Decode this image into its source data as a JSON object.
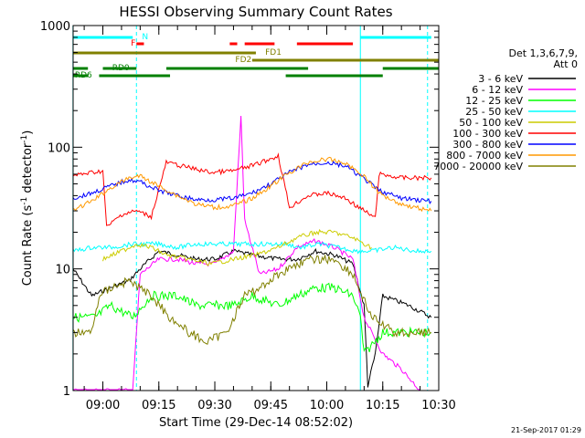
{
  "chart_data": {
    "type": "line",
    "title": "HESSI Observing Summary Count Rates",
    "xlabel": "Start Time (29-Dec-14 08:52:02)",
    "ylabel_main": "Count Rate (s",
    "ylabel_exp1": "-1",
    "ylabel_mid": " detector",
    "ylabel_exp2": "-1",
    "ylabel_end": ")",
    "y_scale": "log",
    "ylim": [
      1,
      1000
    ],
    "xlim": [
      "08:52:02",
      "10:30:00"
    ],
    "y_ticks": [
      {
        "value": 1,
        "label": "1"
      },
      {
        "value": 10,
        "label": "10"
      },
      {
        "value": 100,
        "label": "100"
      },
      {
        "value": 1000,
        "label": "1000"
      }
    ],
    "x_ticks": [
      {
        "time": "09:00",
        "label": "09:00"
      },
      {
        "time": "09:15",
        "label": "09:15"
      },
      {
        "time": "09:30",
        "label": "09:30"
      },
      {
        "time": "09:45",
        "label": "09:45"
      },
      {
        "time": "10:00",
        "label": "10:00"
      },
      {
        "time": "10:15",
        "label": "10:15"
      },
      {
        "time": "10:30",
        "label": "10:30"
      }
    ],
    "legend": {
      "header1": "Det 1,3,6,7,9,",
      "header2": "Att 0",
      "placement": "right"
    },
    "series": [
      {
        "name": "3 - 6 keV",
        "color": "#000000",
        "points": [
          [
            "08:52",
            10
          ],
          [
            "08:57",
            6
          ],
          [
            "09:02",
            7
          ],
          [
            "09:07",
            8
          ],
          [
            "09:10",
            10
          ],
          [
            "09:15",
            14
          ],
          [
            "09:20",
            13
          ],
          [
            "09:25",
            12
          ],
          [
            "09:30",
            12
          ],
          [
            "09:35",
            14
          ],
          [
            "09:40",
            13
          ],
          [
            "09:47",
            12
          ],
          [
            "09:52",
            12
          ],
          [
            "09:57",
            14
          ],
          [
            "10:02",
            13
          ],
          [
            "10:07",
            11
          ],
          [
            "10:10",
            5
          ],
          [
            "10:11",
            1.1
          ],
          [
            "10:13",
            2
          ],
          [
            "10:15",
            6
          ],
          [
            "10:22",
            5
          ],
          [
            "10:28",
            4
          ]
        ]
      },
      {
        "name": "6 - 12 keV",
        "color": "#ff00ff",
        "points": [
          [
            "08:52",
            1
          ],
          [
            "09:08",
            1
          ],
          [
            "09:10",
            9
          ],
          [
            "09:15",
            12
          ],
          [
            "09:20",
            12
          ],
          [
            "09:25",
            11
          ],
          [
            "09:30",
            11
          ],
          [
            "09:35",
            14
          ],
          [
            "09:37",
            180
          ],
          [
            "09:38",
            25
          ],
          [
            "09:42",
            9
          ],
          [
            "09:47",
            10
          ],
          [
            "09:52",
            15
          ],
          [
            "09:57",
            17
          ],
          [
            "10:02",
            15
          ],
          [
            "10:07",
            12
          ],
          [
            "10:10",
            4
          ],
          [
            "10:12",
            3
          ],
          [
            "10:15",
            2
          ],
          [
            "10:20",
            1.5
          ],
          [
            "10:25",
            1
          ]
        ]
      },
      {
        "name": "12 - 25 keV",
        "color": "#00ff00",
        "points": [
          [
            "08:52",
            4
          ],
          [
            "08:58",
            4
          ],
          [
            "09:02",
            5
          ],
          [
            "09:08",
            4
          ],
          [
            "09:13",
            6
          ],
          [
            "09:20",
            6
          ],
          [
            "09:25",
            5
          ],
          [
            "09:30",
            5
          ],
          [
            "09:35",
            5
          ],
          [
            "09:40",
            6
          ],
          [
            "09:47",
            5
          ],
          [
            "09:52",
            6
          ],
          [
            "09:57",
            7
          ],
          [
            "10:02",
            7
          ],
          [
            "10:07",
            6
          ],
          [
            "10:09",
            4
          ],
          [
            "10:10",
            2
          ],
          [
            "10:15",
            3
          ],
          [
            "10:22",
            3
          ],
          [
            "10:28",
            3
          ]
        ]
      },
      {
        "name": "25 - 50 keV",
        "color": "#00ffff",
        "points": [
          [
            "08:52",
            14
          ],
          [
            "08:57",
            15
          ],
          [
            "09:02",
            15
          ],
          [
            "09:08",
            16
          ],
          [
            "09:11",
            16
          ],
          [
            "09:15",
            16
          ],
          [
            "09:20",
            15
          ],
          [
            "09:25",
            16
          ],
          [
            "09:30",
            16
          ],
          [
            "09:35",
            16
          ],
          [
            "09:40",
            16
          ],
          [
            "09:45",
            16
          ],
          [
            "09:49",
            16
          ],
          [
            "09:53",
            15
          ],
          [
            "09:58",
            16
          ],
          [
            "10:03",
            15
          ],
          [
            "10:08",
            14
          ],
          [
            "10:12",
            14
          ],
          [
            "10:18",
            15
          ],
          [
            "10:24",
            14
          ],
          [
            "10:28",
            14
          ]
        ]
      },
      {
        "name": "50 - 100 keV",
        "color": "#cccc00",
        "points": [
          [
            "09:00",
            12
          ],
          [
            "09:05",
            14
          ],
          [
            "09:09",
            16
          ],
          [
            "09:13",
            15
          ],
          [
            "09:17",
            13
          ],
          [
            "09:23",
            12
          ],
          [
            "09:29",
            11
          ],
          [
            "09:35",
            12
          ],
          [
            "09:41",
            13
          ],
          [
            "09:47",
            15
          ],
          [
            "09:52",
            18
          ],
          [
            "09:57",
            20
          ],
          [
            "10:02",
            20
          ],
          [
            "10:07",
            18
          ],
          [
            "10:12",
            15
          ]
        ]
      },
      {
        "name": "100 - 300 keV",
        "color": "#ff0000",
        "points": [
          [
            "08:52",
            58
          ],
          [
            "08:57",
            62
          ],
          [
            "09:00",
            64
          ],
          [
            "09:01",
            22
          ],
          [
            "09:05",
            28
          ],
          [
            "09:09",
            30
          ],
          [
            "09:13",
            27
          ],
          [
            "09:17",
            75
          ],
          [
            "09:23",
            68
          ],
          [
            "09:29",
            62
          ],
          [
            "09:35",
            64
          ],
          [
            "09:41",
            72
          ],
          [
            "09:47",
            85
          ],
          [
            "09:50",
            32
          ],
          [
            "09:55",
            40
          ],
          [
            "10:00",
            42
          ],
          [
            "10:05",
            38
          ],
          [
            "10:10",
            30
          ],
          [
            "10:13",
            26
          ],
          [
            "10:14",
            60
          ],
          [
            "10:20",
            56
          ],
          [
            "10:28",
            56
          ]
        ]
      },
      {
        "name": "300 - 800 keV",
        "color": "#0000ff",
        "points": [
          [
            "08:52",
            38
          ],
          [
            "08:57",
            42
          ],
          [
            "09:02",
            48
          ],
          [
            "09:07",
            54
          ],
          [
            "09:10",
            52
          ],
          [
            "09:15",
            44
          ],
          [
            "09:20",
            40
          ],
          [
            "09:25",
            37
          ],
          [
            "09:30",
            37
          ],
          [
            "09:35",
            38
          ],
          [
            "09:40",
            42
          ],
          [
            "09:45",
            50
          ],
          [
            "09:50",
            62
          ],
          [
            "09:55",
            72
          ],
          [
            "10:00",
            75
          ],
          [
            "10:05",
            70
          ],
          [
            "10:10",
            55
          ],
          [
            "10:14",
            44
          ],
          [
            "10:20",
            38
          ],
          [
            "10:28",
            36
          ]
        ]
      },
      {
        "name": "800 - 7000 keV",
        "color": "#ff9900",
        "points": [
          [
            "08:52",
            30
          ],
          [
            "08:57",
            36
          ],
          [
            "09:02",
            46
          ],
          [
            "09:07",
            56
          ],
          [
            "09:10",
            58
          ],
          [
            "09:15",
            48
          ],
          [
            "09:20",
            40
          ],
          [
            "09:25",
            34
          ],
          [
            "09:30",
            32
          ],
          [
            "09:35",
            33
          ],
          [
            "09:40",
            38
          ],
          [
            "09:45",
            48
          ],
          [
            "09:50",
            62
          ],
          [
            "09:55",
            75
          ],
          [
            "10:00",
            80
          ],
          [
            "10:05",
            74
          ],
          [
            "10:10",
            58
          ],
          [
            "10:14",
            42
          ],
          [
            "10:20",
            34
          ],
          [
            "10:28",
            30
          ]
        ]
      },
      {
        "name": "7000 - 20000 keV",
        "color": "#808000",
        "points": [
          [
            "08:52",
            3
          ],
          [
            "08:57",
            3
          ],
          [
            "08:59",
            6
          ],
          [
            "09:02",
            7
          ],
          [
            "09:07",
            8
          ],
          [
            "09:13",
            6
          ],
          [
            "09:18",
            4
          ],
          [
            "09:23",
            3
          ],
          [
            "09:28",
            2.5
          ],
          [
            "09:33",
            3
          ],
          [
            "09:38",
            6
          ],
          [
            "09:42",
            7
          ],
          [
            "09:47",
            9
          ],
          [
            "09:52",
            11
          ],
          [
            "09:57",
            12
          ],
          [
            "10:02",
            12
          ],
          [
            "10:07",
            9
          ],
          [
            "10:12",
            4
          ],
          [
            "10:18",
            3
          ],
          [
            "10:28",
            3
          ]
        ]
      }
    ],
    "flags": [
      {
        "label": "N",
        "color": "#00ffff",
        "segments": [
          [
            "08:52",
            "09:08"
          ],
          [
            "10:09",
            "10:28"
          ]
        ]
      },
      {
        "label": "F",
        "color": "#ff0000",
        "segments": [
          [
            "09:09",
            "09:11"
          ],
          [
            "09:34",
            "09:36"
          ],
          [
            "09:38",
            "09:46"
          ],
          [
            "09:52",
            "10:07"
          ]
        ]
      },
      {
        "label": "FD1",
        "color": "#808000",
        "segments": [
          [
            "08:52",
            "09:41"
          ]
        ]
      },
      {
        "label": "FD2",
        "color": "#808000",
        "segments": [
          [
            "09:40",
            "10:30"
          ]
        ]
      },
      {
        "label": "RD0",
        "color": "#008000",
        "segments": [
          [
            "08:52",
            "08:56"
          ],
          [
            "09:00",
            "09:09"
          ],
          [
            "09:17",
            "09:55"
          ],
          [
            "10:15",
            "10:30"
          ]
        ]
      },
      {
        "label": "RD6",
        "color": "#008000",
        "segments": [
          [
            "08:52",
            "08:56"
          ],
          [
            "08:59",
            "09:18"
          ],
          [
            "09:49",
            "10:15"
          ]
        ]
      }
    ],
    "saa_markers": [
      {
        "color": "#00ffff",
        "style": "dashed",
        "time": "09:09"
      },
      {
        "color": "#00ffff",
        "style": "solid",
        "time": "10:09"
      },
      {
        "color": "#00ffff",
        "style": "dashed",
        "time": "10:27"
      },
      {
        "color": "#00ffff",
        "style": "solid",
        "time": "08:52"
      }
    ]
  },
  "footer": {
    "timestamp": "21-Sep-2017 01:29"
  }
}
